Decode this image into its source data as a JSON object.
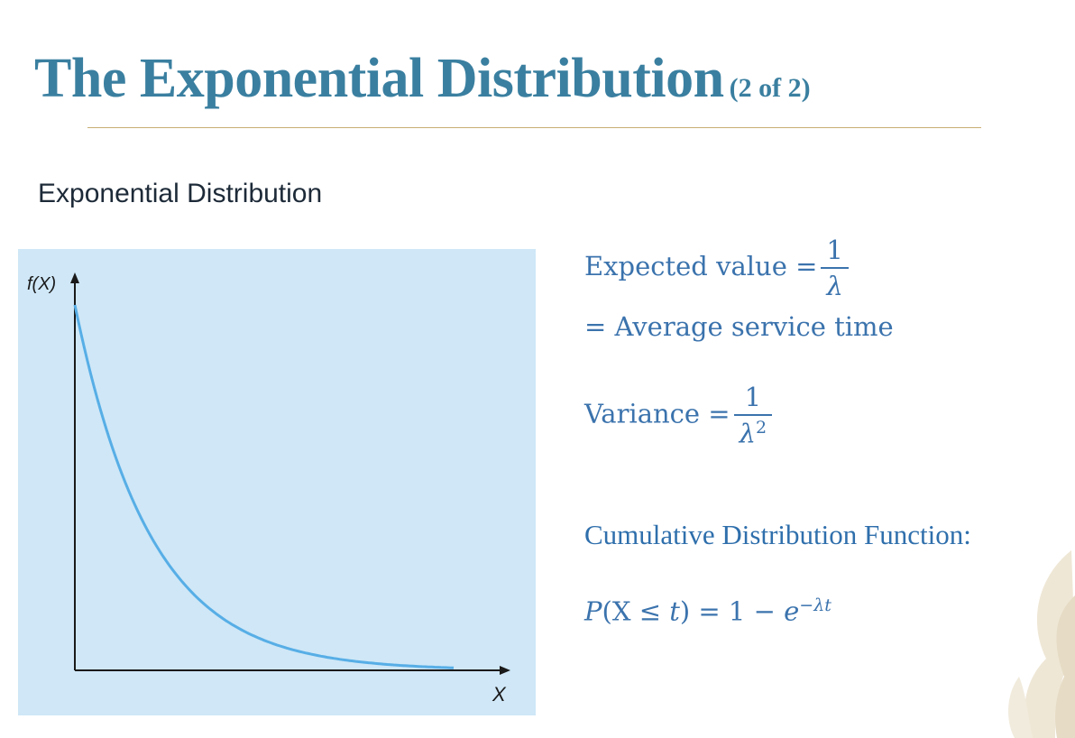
{
  "title": {
    "main": "The Exponential Distribution",
    "sub": "(2 of 2)"
  },
  "subtitle": "Exponential Distribution",
  "chart_data": {
    "type": "line",
    "title": "",
    "xlabel": "X",
    "ylabel": "f(X)",
    "curve": "exponential decay",
    "x_ticks": [],
    "y_ticks": [],
    "grid": false,
    "background": "#cfe7f7",
    "line_color": "#57aee6"
  },
  "formulas": {
    "expected_label": "Expected value =",
    "expected_num": "1",
    "expected_den": "λ",
    "average_line": "= Average service time",
    "variance_label": "Variance =",
    "variance_num": "1",
    "variance_den": "λ",
    "variance_den_exp": "2",
    "cdf_heading": "Cumulative Distribution Function:",
    "cdf_P": "P",
    "cdf_open": "(X ≤ ",
    "cdf_t": "t",
    "cdf_close": ") = 1 − ",
    "cdf_e": "e",
    "cdf_exp": "−λt"
  },
  "colors": {
    "title": "#3a7fa0",
    "rule": "#c8ae72",
    "formula": "#3b73ad",
    "plot_bg": "#cfe7f7",
    "curve": "#57aee6"
  }
}
